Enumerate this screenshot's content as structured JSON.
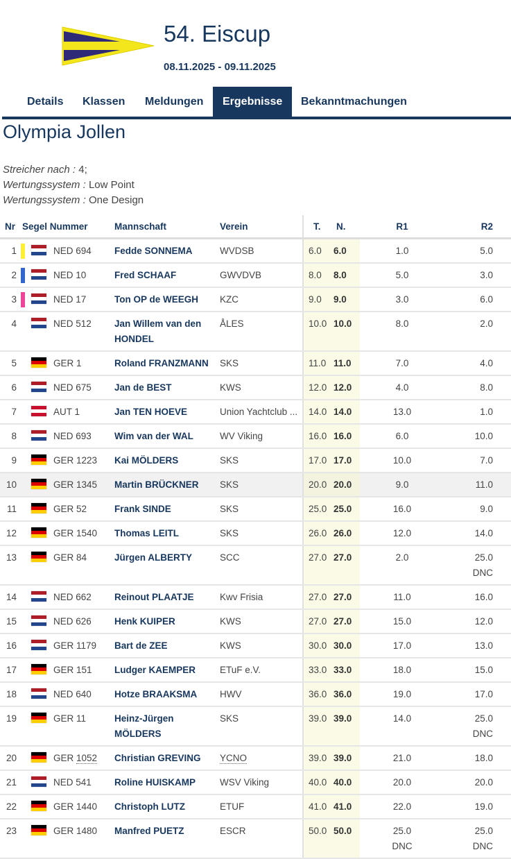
{
  "event": {
    "title": "54. Eiscup",
    "dates": "08.11.2025 - 09.11.2025"
  },
  "tabs": [
    {
      "label": "Details"
    },
    {
      "label": "Klassen"
    },
    {
      "label": "Meldungen"
    },
    {
      "label": "Ergebnisse",
      "active": true
    },
    {
      "label": "Bekanntmachungen"
    }
  ],
  "class_title": "Olympia Jollen",
  "meta": [
    {
      "key": "Streicher nach :",
      "value": "4;"
    },
    {
      "key": "Wertungssystem :",
      "value": "Low Point"
    },
    {
      "key": "Wertungssystem :",
      "value": "One Design"
    }
  ],
  "colors": {
    "primary": "#17375e",
    "highlight_col": "#fafae6",
    "yellow": "#ffee33",
    "blue": "#3366cc",
    "pink": "#ee4499"
  },
  "table": {
    "headers": {
      "nr": "Nr",
      "sail": "Segel Nummer",
      "crew": "Mannschaft",
      "club": "Verein",
      "t": "T.",
      "n": "N.",
      "r1": "R1",
      "r2": "R2"
    },
    "rows": [
      {
        "nr": "1",
        "medal": "yellow",
        "flag": "nl",
        "sail": "NED 694",
        "crew": "Fedde SONNEMA",
        "club": "WVDSB",
        "t": "6.0",
        "n": "6.0",
        "r1": "1.0",
        "r2": "5.0"
      },
      {
        "nr": "2",
        "medal": "blue",
        "flag": "nl",
        "sail": "NED 10",
        "crew": "Fred SCHAAF",
        "club": "GWVDVB",
        "t": "8.0",
        "n": "8.0",
        "r1": "5.0",
        "r2": "3.0"
      },
      {
        "nr": "3",
        "medal": "pink",
        "flag": "nl",
        "sail": "NED 17",
        "crew": "Ton OP de WEEGH",
        "club": "KZC",
        "t": "9.0",
        "n": "9.0",
        "r1": "3.0",
        "r2": "6.0"
      },
      {
        "nr": "4",
        "flag": "nl",
        "sail": "NED 512",
        "crew": "Jan Willem van den HONDEL",
        "club": "ÅLES",
        "t": "10.0",
        "n": "10.0",
        "r1": "8.0",
        "r2": "2.0"
      },
      {
        "nr": "5",
        "flag": "de",
        "sail": "GER 1",
        "crew": "Roland FRANZMANN",
        "club": "SKS",
        "t": "11.0",
        "n": "11.0",
        "r1": "7.0",
        "r2": "4.0"
      },
      {
        "nr": "6",
        "flag": "nl",
        "sail": "NED 675",
        "crew": "Jan de BEST",
        "club": "KWS",
        "t": "12.0",
        "n": "12.0",
        "r1": "4.0",
        "r2": "8.0"
      },
      {
        "nr": "7",
        "flag": "at",
        "sail": "AUT 1",
        "crew": "Jan TEN HOEVE",
        "club": "Union Yachtclub ...",
        "t": "14.0",
        "n": "14.0",
        "r1": "13.0",
        "r2": "1.0"
      },
      {
        "nr": "8",
        "flag": "nl",
        "sail": "NED 693",
        "crew": "Wim van der WAL",
        "club": "WV Viking",
        "t": "16.0",
        "n": "16.0",
        "r1": "6.0",
        "r2": "10.0"
      },
      {
        "nr": "9",
        "flag": "de",
        "sail": "GER 1223",
        "crew": "Kai MÖLDERS",
        "club": "SKS",
        "t": "17.0",
        "n": "17.0",
        "r1": "10.0",
        "r2": "7.0"
      },
      {
        "nr": "10",
        "flag": "de",
        "sail": "GER 1345",
        "crew": "Martin BRÜCKNER",
        "club": "SKS",
        "t": "20.0",
        "n": "20.0",
        "r1": "9.0",
        "r2": "11.0",
        "highlighted": true
      },
      {
        "nr": "11",
        "flag": "de",
        "sail": "GER 52",
        "crew": "Frank SINDE",
        "club": "SKS",
        "t": "25.0",
        "n": "25.0",
        "r1": "16.0",
        "r2": "9.0"
      },
      {
        "nr": "12",
        "flag": "de",
        "sail": "GER 1540",
        "crew": "Thomas LEITL",
        "club": "SKS",
        "t": "26.0",
        "n": "26.0",
        "r1": "12.0",
        "r2": "14.0"
      },
      {
        "nr": "13",
        "flag": "de",
        "sail": "GER 84",
        "crew": "Jürgen ALBERTY",
        "club": "SCC",
        "t": "27.0",
        "n": "27.0",
        "r1": "2.0",
        "r2": "25.0",
        "r2_code": "DNC"
      },
      {
        "nr": "14",
        "flag": "nl",
        "sail": "NED 662",
        "crew": "Reinout PLAATJE",
        "club": "Kwv Frisia",
        "t": "27.0",
        "n": "27.0",
        "r1": "11.0",
        "r2": "16.0"
      },
      {
        "nr": "15",
        "flag": "nl",
        "sail": "NED 626",
        "crew": "Henk KUIPER",
        "club": "KWS",
        "t": "27.0",
        "n": "27.0",
        "r1": "15.0",
        "r2": "12.0"
      },
      {
        "nr": "16",
        "flag": "nl",
        "sail": "GER 1179",
        "crew": "Bart de ZEE",
        "club": "KWS",
        "t": "30.0",
        "n": "30.0",
        "r1": "17.0",
        "r2": "13.0"
      },
      {
        "nr": "17",
        "flag": "de",
        "sail": "GER 151",
        "crew": "Ludger KAEMPER",
        "club": "ETuF e.V.",
        "t": "33.0",
        "n": "33.0",
        "r1": "18.0",
        "r2": "15.0"
      },
      {
        "nr": "18",
        "flag": "nl",
        "sail": "NED 640",
        "crew": "Hotze BRAAKSMA",
        "club": "HWV",
        "t": "36.0",
        "n": "36.0",
        "r1": "19.0",
        "r2": "17.0"
      },
      {
        "nr": "19",
        "flag": "de",
        "sail": "GER 11",
        "crew": "Heinz-Jürgen MÖLDERS",
        "club": "SKS",
        "t": "39.0",
        "n": "39.0",
        "r1": "14.0",
        "r2": "25.0",
        "r2_code": "DNC"
      },
      {
        "nr": "20",
        "flag": "de",
        "sail_prefix": "GER ",
        "sail": "1052",
        "sail_dotted": true,
        "crew": "Christian GREVING",
        "club": "YCNO",
        "club_dotted": true,
        "t": "39.0",
        "n": "39.0",
        "r1": "21.0",
        "r2": "18.0"
      },
      {
        "nr": "21",
        "flag": "nl",
        "sail": "NED 541",
        "crew": "Roline HUISKAMP",
        "club": "WSV Viking",
        "t": "40.0",
        "n": "40.0",
        "r1": "20.0",
        "r2": "20.0"
      },
      {
        "nr": "22",
        "flag": "de",
        "sail": "GER 1440",
        "crew": "Christoph LUTZ",
        "club": "ETUF",
        "t": "41.0",
        "n": "41.0",
        "r1": "22.0",
        "r2": "19.0"
      },
      {
        "nr": "23",
        "flag": "de",
        "sail": "GER 1480",
        "crew": "Manfred PUETZ",
        "club": "ESCR",
        "t": "50.0",
        "n": "50.0",
        "r1": "25.0",
        "r1_code": "DNC",
        "r2": "25.0",
        "r2_code": "DNC"
      }
    ]
  }
}
